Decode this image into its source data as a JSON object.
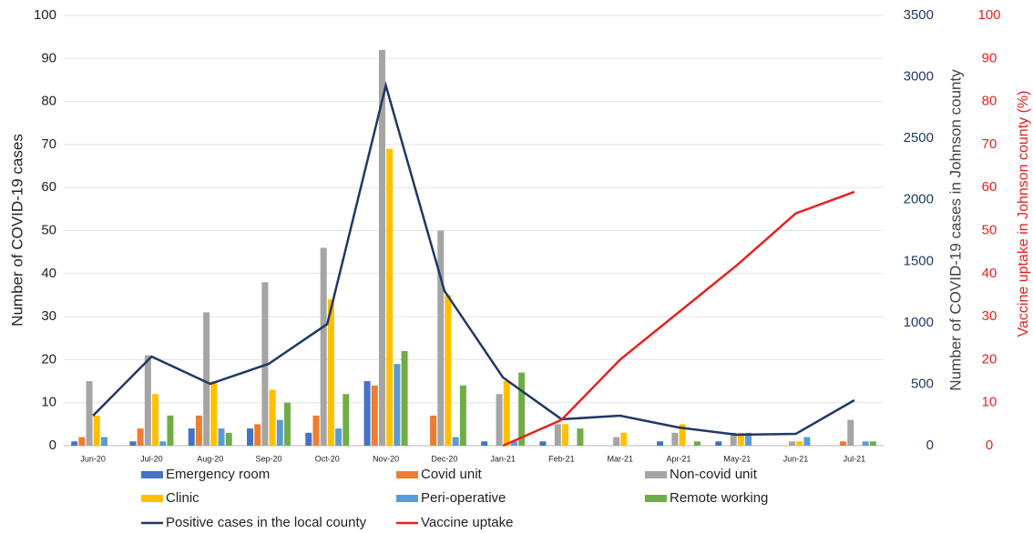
{
  "chart_data": {
    "type": "bar",
    "y_label": "Number of COVID-19 cases",
    "y2_label": "Number of COVID-19 cases in Johnson county",
    "y3_label": "Vaccine uptake in Johnson county (%)",
    "categories": [
      "Jun-20",
      "Jul-20",
      "Aug-20",
      "Sep-20",
      "Oct-20",
      "Nov-20",
      "Dec-20",
      "Jan-21",
      "Feb-21",
      "Mar-21",
      "Apr-21",
      "May-21",
      "Jun-21",
      "Jul-21"
    ],
    "ylim": [
      0,
      100
    ],
    "yticks": [
      0,
      10,
      20,
      30,
      40,
      50,
      60,
      70,
      80,
      90,
      100
    ],
    "y2lim": [
      0,
      3500
    ],
    "y2ticks": [
      0,
      500,
      1000,
      1500,
      2000,
      2500,
      3000,
      3500
    ],
    "y3lim": [
      0,
      100
    ],
    "y3ticks": [
      0,
      10,
      20,
      30,
      40,
      50,
      60,
      70,
      80,
      90,
      100
    ],
    "grid": true,
    "legend": "bottom",
    "series": [
      {
        "name": "Emergency room",
        "color": "#4472c4",
        "values": [
          1,
          1,
          4,
          4,
          3,
          15,
          0,
          1,
          1,
          0,
          1,
          1,
          0,
          0
        ]
      },
      {
        "name": "Covid unit",
        "color": "#ed7d31",
        "values": [
          2,
          4,
          7,
          5,
          7,
          14,
          7,
          0,
          0,
          0,
          0,
          0,
          0,
          1
        ]
      },
      {
        "name": "Non-covid unit",
        "color": "#a5a5a5",
        "values": [
          15,
          21,
          31,
          38,
          46,
          92,
          50,
          12,
          5,
          2,
          3,
          3,
          1,
          6
        ]
      },
      {
        "name": "Clinic",
        "color": "#ffc000",
        "values": [
          7,
          12,
          15,
          13,
          34,
          69,
          35,
          15,
          5,
          3,
          5,
          3,
          1,
          0
        ]
      },
      {
        "name": "Peri-operative",
        "color": "#5b9bd5",
        "values": [
          2,
          1,
          4,
          6,
          4,
          19,
          2,
          1,
          0,
          0,
          0,
          3,
          2,
          1
        ]
      },
      {
        "name": "Remote working",
        "color": "#70ad47",
        "values": [
          0,
          7,
          3,
          10,
          12,
          22,
          14,
          17,
          4,
          0,
          1,
          0,
          0,
          1
        ]
      },
      {
        "name": "Positive cases in the local county",
        "color": "#203864",
        "type": "line",
        "axis": "y2",
        "values": [
          244,
          725,
          503,
          666,
          990,
          2930,
          1260,
          555,
          215,
          244,
          148,
          89,
          96,
          370
        ]
      },
      {
        "name": "Vaccine uptake",
        "color": "#e8201f",
        "type": "line",
        "axis": "y3",
        "values": [
          null,
          null,
          null,
          null,
          null,
          null,
          null,
          0,
          6,
          20,
          31,
          42,
          54,
          59
        ]
      }
    ]
  }
}
